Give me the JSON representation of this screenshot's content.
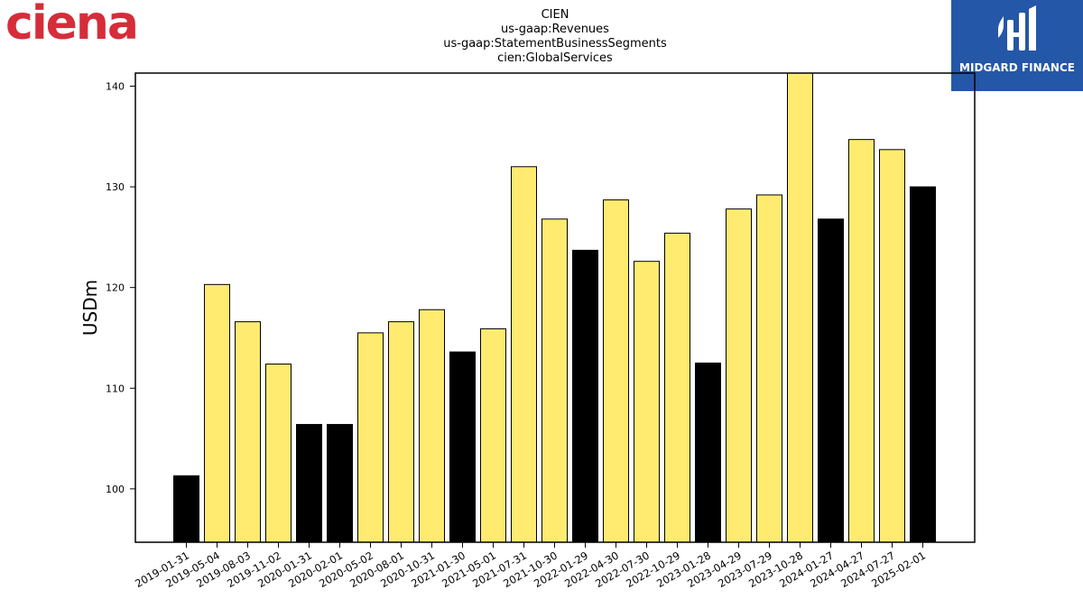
{
  "brand": {
    "wordmark": "ciena"
  },
  "corner_badge": {
    "text": "MIDGARD FINANCE",
    "color": "#2457a8"
  },
  "chart_data": {
    "type": "bar",
    "title_lines": [
      "CIEN",
      "us-gaap:Revenues",
      "us-gaap:StatementBusinessSegments",
      "cien:GlobalServices"
    ],
    "xlabel": "",
    "ylabel": "USDm",
    "ylim": [
      94.7,
      141.3
    ],
    "yticks": [
      100,
      110,
      120,
      130,
      140
    ],
    "categories": [
      "2019-01-31",
      "2019-05-04",
      "2019-08-03",
      "2019-11-02",
      "2020-01-31",
      "2020-02-01",
      "2020-05-02",
      "2020-08-01",
      "2020-10-31",
      "2021-01-30",
      "2021-05-01",
      "2021-07-31",
      "2021-10-30",
      "2022-01-29",
      "2022-04-30",
      "2022-07-30",
      "2022-10-29",
      "2023-01-28",
      "2023-04-29",
      "2023-07-29",
      "2023-10-28",
      "2024-01-27",
      "2024-04-27",
      "2024-07-27",
      "2025-02-01"
    ],
    "values": [
      101.3,
      120.3,
      116.6,
      112.4,
      106.4,
      106.4,
      115.5,
      116.6,
      117.8,
      113.6,
      115.9,
      132.0,
      126.8,
      123.7,
      128.7,
      122.6,
      125.4,
      112.5,
      127.8,
      129.2,
      141.3,
      126.8,
      134.7,
      133.7,
      130.0
    ],
    "bar_colors": [
      "black",
      "yellow",
      "yellow",
      "yellow",
      "black",
      "black",
      "yellow",
      "yellow",
      "yellow",
      "black",
      "yellow",
      "yellow",
      "yellow",
      "black",
      "yellow",
      "yellow",
      "yellow",
      "black",
      "yellow",
      "yellow",
      "yellow",
      "black",
      "yellow",
      "yellow",
      "black"
    ],
    "colors": {
      "yellow": "#ffeb70",
      "black": "#000000",
      "edge": "#000000"
    },
    "grid": false,
    "legend": "none"
  }
}
